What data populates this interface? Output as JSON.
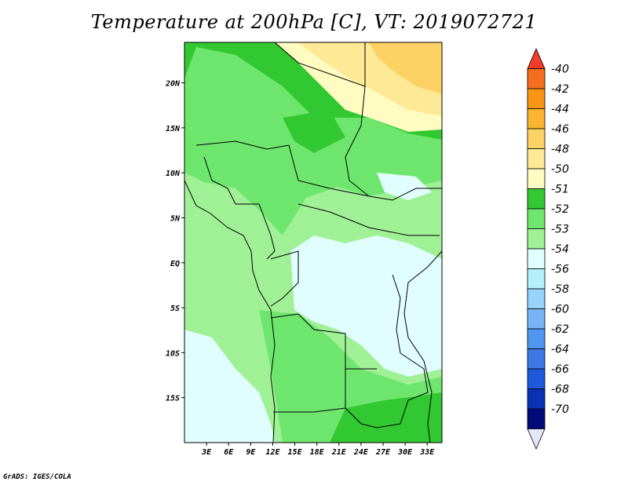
{
  "title": "Temperature at 200hPa [C], VT: 2019072721",
  "credit": "GrADS: IGES/COLA",
  "map": {
    "lon_range": [
      0,
      35
    ],
    "lat_range": [
      -20,
      24.5
    ],
    "lat_ticks": [
      {
        "lat": 20,
        "label": "20N"
      },
      {
        "lat": 15,
        "label": "15N"
      },
      {
        "lat": 10,
        "label": "10N"
      },
      {
        "lat": 5,
        "label": "5N"
      },
      {
        "lat": 0,
        "label": "EQ"
      },
      {
        "lat": -5,
        "label": "5S"
      },
      {
        "lat": -10,
        "label": "10S"
      },
      {
        "lat": -15,
        "label": "15S"
      }
    ],
    "lon_ticks": [
      {
        "lon": 3,
        "label": "3E"
      },
      {
        "lon": 6,
        "label": "6E"
      },
      {
        "lon": 9,
        "label": "9E"
      },
      {
        "lon": 12,
        "label": "12E"
      },
      {
        "lon": 15,
        "label": "15E"
      },
      {
        "lon": 18,
        "label": "18E"
      },
      {
        "lon": 21,
        "label": "21E"
      },
      {
        "lon": 24,
        "label": "24E"
      },
      {
        "lon": 27,
        "label": "27E"
      },
      {
        "lon": 30,
        "label": "30E"
      },
      {
        "lon": 33,
        "label": "33E"
      }
    ]
  },
  "colorbar": {
    "levels": [
      "-40",
      "-42",
      "-44",
      "-46",
      "-48",
      "-50",
      "-51",
      "-52",
      "-53",
      "-54",
      "-56",
      "-58",
      "-60",
      "-62",
      "-64",
      "-66",
      "-68",
      "-70"
    ],
    "colors": [
      "#f03c28",
      "#f56e1e",
      "#f89614",
      "#fbb42d",
      "#fcd264",
      "#fee996",
      "#fefcc0",
      "#32c832",
      "#6ee66e",
      "#a0f096",
      "#e0fefe",
      "#b4f0fa",
      "#96d2fa",
      "#78b4f5",
      "#5096f0",
      "#3c78e6",
      "#1e5adc",
      "#0a32b4",
      "#000a78",
      "#e6e6fa"
    ]
  }
}
